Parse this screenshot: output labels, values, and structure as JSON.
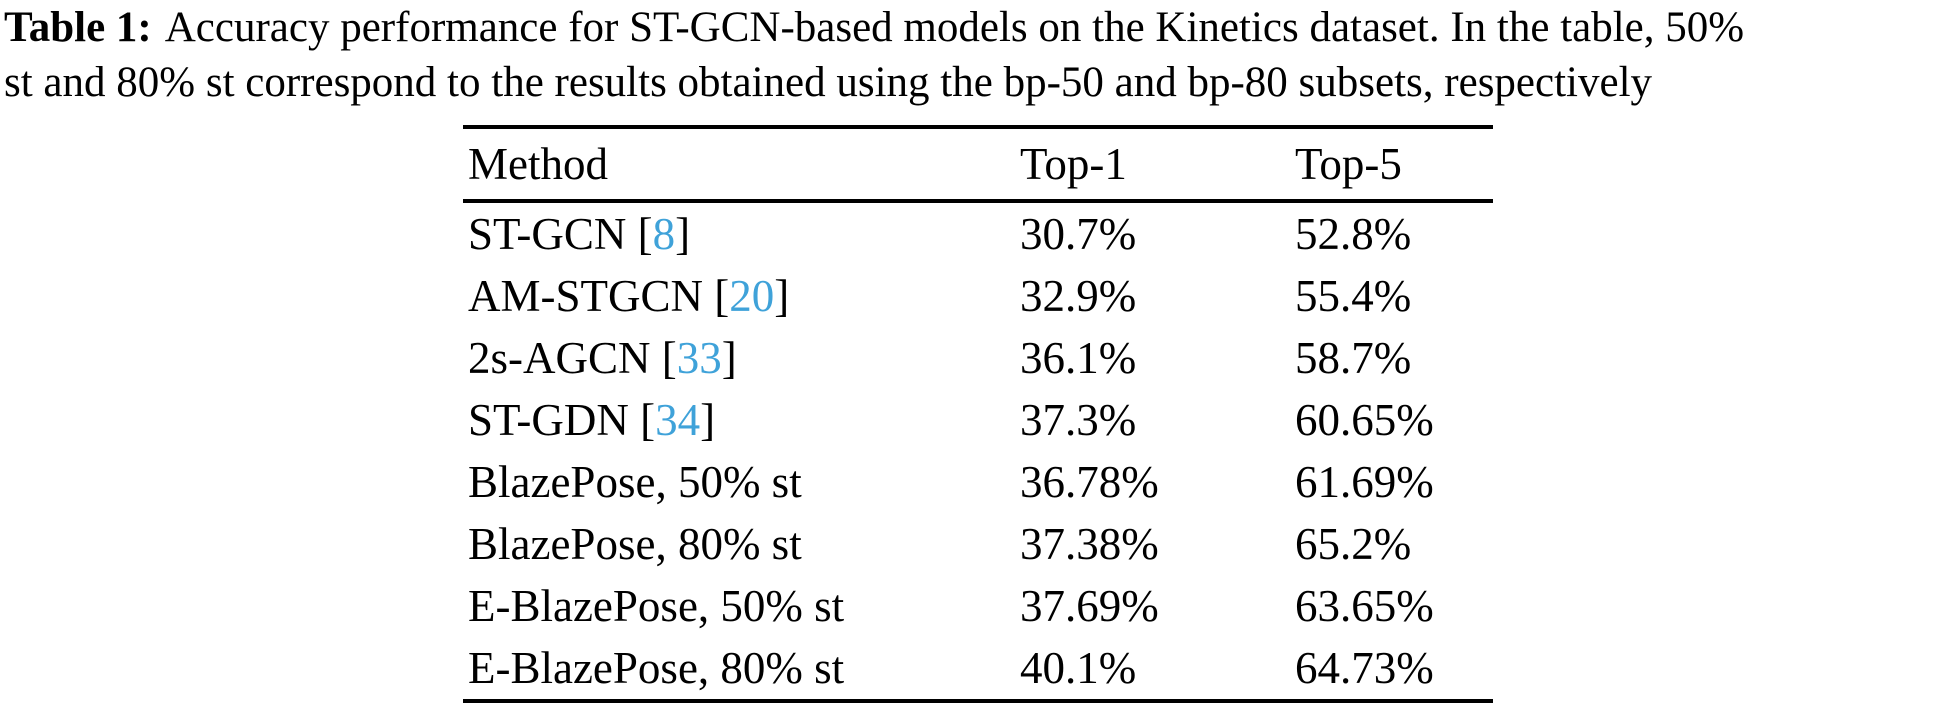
{
  "caption": {
    "label": "Table 1:",
    "line1_rest": "Accuracy performance for ST-GCN-based models on the Kinetics dataset. In the table, 50%",
    "line2": "st and 80% st correspond to the results obtained using the bp-50 and bp-80 subsets, respectively"
  },
  "colors": {
    "citation_link": "#3fa2d9",
    "text": "#000000",
    "rule": "#000000",
    "background": "#ffffff"
  },
  "table": {
    "columns": [
      "Method",
      "Top-1",
      "Top-5"
    ],
    "rows": [
      {
        "method_pre": "ST-GCN [",
        "cite": "8",
        "method_post": "]",
        "top1": "30.7%",
        "top5": "52.8%"
      },
      {
        "method_pre": "AM-STGCN [",
        "cite": "20",
        "method_post": "]",
        "top1": "32.9%",
        "top5": "55.4%"
      },
      {
        "method_pre": "2s-AGCN [",
        "cite": "33",
        "method_post": "]",
        "top1": "36.1%",
        "top5": "58.7%"
      },
      {
        "method_pre": "ST-GDN [",
        "cite": "34",
        "method_post": "]",
        "top1": "37.3%",
        "top5": "60.65%"
      },
      {
        "method_pre": "BlazePose, 50% st",
        "cite": "",
        "method_post": "",
        "top1": "36.78%",
        "top5": "61.69%"
      },
      {
        "method_pre": "BlazePose, 80% st",
        "cite": "",
        "method_post": "",
        "top1": "37.38%",
        "top5": "65.2%"
      },
      {
        "method_pre": "E-BlazePose, 50% st",
        "cite": "",
        "method_post": "",
        "top1": "37.69%",
        "top5": "63.65%"
      },
      {
        "method_pre": "E-BlazePose, 80% st",
        "cite": "",
        "method_post": "",
        "top1": "40.1%",
        "top5": "64.73%"
      }
    ]
  },
  "chart_data": {
    "type": "table",
    "columns": [
      "Method",
      "Top-1",
      "Top-5"
    ],
    "rows": [
      [
        "ST-GCN [8]",
        "30.7%",
        "52.8%"
      ],
      [
        "AM-STGCN [20]",
        "32.9%",
        "55.4%"
      ],
      [
        "2s-AGCN [33]",
        "36.1%",
        "58.7%"
      ],
      [
        "ST-GDN [34]",
        "37.3%",
        "60.65%"
      ],
      [
        "BlazePose, 50% st",
        "36.78%",
        "61.69%"
      ],
      [
        "BlazePose, 80% st",
        "37.38%",
        "65.2%"
      ],
      [
        "E-BlazePose, 50% st",
        "37.69%",
        "63.65%"
      ],
      [
        "E-BlazePose, 80% st",
        "40.1%",
        "64.73%"
      ]
    ],
    "title": "Table 1: Accuracy performance for ST-GCN-based models on the Kinetics dataset"
  }
}
